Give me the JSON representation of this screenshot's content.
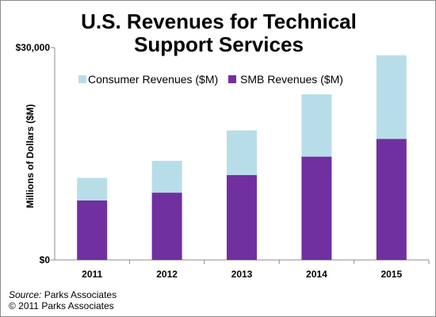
{
  "chart_data": {
    "type": "bar",
    "stacked": true,
    "title": "U.S. Revenues for Technical Support Services",
    "title_lines": [
      "U.S. Revenues for Technical",
      "Support Services"
    ],
    "xlabel": "",
    "ylabel": "Millions of Dollars ($M)",
    "categories": [
      "2011",
      "2012",
      "2013",
      "2014",
      "2015"
    ],
    "series": [
      {
        "name": "SMB Revenues ($M)",
        "color": "#7030A0",
        "values": [
          8400,
          9500,
          12000,
          14600,
          17100
        ]
      },
      {
        "name": "Consumer Revenues ($M)",
        "color": "#B7DEE8",
        "values": [
          3200,
          4500,
          6300,
          8800,
          11800
        ]
      }
    ],
    "ylim": [
      0,
      30000
    ],
    "y_tick_labels": [
      "$0",
      "$30,000"
    ],
    "y_tick_values": [
      0,
      30000
    ],
    "grid": false,
    "legend_position": "top-left"
  },
  "footer": {
    "source_label": "Source:",
    "source_name": "Parks Associates",
    "copyright": "© 2011 Parks Associates"
  }
}
